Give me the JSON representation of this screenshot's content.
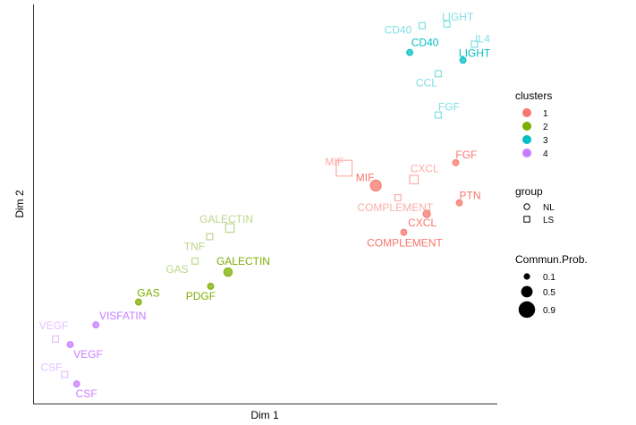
{
  "chart_data": {
    "type": "scatter",
    "title": "",
    "xlabel": "Dim 1",
    "ylabel": "Dim 2",
    "grid": false,
    "legend_position": "right",
    "xlim": [
      0,
      100
    ],
    "ylim": [
      0,
      100
    ],
    "cluster_colors": {
      "1": "#F8766D",
      "2": "#7CAE00",
      "3": "#00BFC4",
      "4": "#C77CFF"
    },
    "faded_colors": {
      "1": "#FBADA7",
      "2": "#BDD68A",
      "3": "#7FDFE2",
      "4": "#E5C0FF"
    },
    "points": [
      {
        "label": "CD40",
        "x": 84.2,
        "y": 95.3,
        "cluster": "3",
        "group": "LS",
        "prob": 0.1
      },
      {
        "label": "LIGHT",
        "x": 89.6,
        "y": 95.7,
        "cluster": "3",
        "group": "LS",
        "prob": 0.1
      },
      {
        "label": "IL4",
        "x": 95.6,
        "y": 90.6,
        "cluster": "3",
        "group": "LS",
        "prob": 0.1
      },
      {
        "label": "CD40",
        "x": 81.5,
        "y": 88.5,
        "cluster": "3",
        "group": "NL",
        "prob": 0.1
      },
      {
        "label": "LIGHT",
        "x": 93.1,
        "y": 86.5,
        "cluster": "3",
        "group": "NL",
        "prob": 0.1
      },
      {
        "label": "CCL",
        "x": 87.7,
        "y": 83.1,
        "cluster": "3",
        "group": "LS",
        "prob": 0.1
      },
      {
        "label": "FGF",
        "x": 87.7,
        "y": 72.6,
        "cluster": "3",
        "group": "LS",
        "prob": 0.1
      },
      {
        "label": "FGF",
        "x": 91.5,
        "y": 60.5,
        "cluster": "1",
        "group": "NL",
        "prob": 0.1
      },
      {
        "label": "MIF",
        "x": 67.2,
        "y": 59.1,
        "cluster": "1",
        "group": "LS",
        "prob": 0.9
      },
      {
        "label": "MIF",
        "x": 74.1,
        "y": 54.7,
        "cluster": "1",
        "group": "NL",
        "prob": 0.5
      },
      {
        "label": "CXCL",
        "x": 82.4,
        "y": 56.2,
        "cluster": "1",
        "group": "LS",
        "prob": 0.3
      },
      {
        "label": "PTN",
        "x": 92.3,
        "y": 50.3,
        "cluster": "1",
        "group": "NL",
        "prob": 0.1
      },
      {
        "label": "COMPLEMENT",
        "x": 78.9,
        "y": 51.6,
        "cluster": "1",
        "group": "LS",
        "prob": 0.1
      },
      {
        "label": "CXCL",
        "x": 85.2,
        "y": 47.5,
        "cluster": "1",
        "group": "NL",
        "prob": 0.2
      },
      {
        "label": "COMPLEMENT",
        "x": 80.2,
        "y": 42.8,
        "cluster": "1",
        "group": "NL",
        "prob": 0.1
      },
      {
        "label": "GALECTIN",
        "x": 42.3,
        "y": 43.9,
        "cluster": "2",
        "group": "LS",
        "prob": 0.3
      },
      {
        "label": "TNF",
        "x": 37.9,
        "y": 41.7,
        "cluster": "2",
        "group": "LS",
        "prob": 0.1
      },
      {
        "label": "GAS",
        "x": 34.7,
        "y": 35.5,
        "cluster": "2",
        "group": "LS",
        "prob": 0.1
      },
      {
        "label": "GALECTIN",
        "x": 41.9,
        "y": 32.7,
        "cluster": "2",
        "group": "NL",
        "prob": 0.3
      },
      {
        "label": "PDGF",
        "x": 38.1,
        "y": 29.1,
        "cluster": "2",
        "group": "NL",
        "prob": 0.1
      },
      {
        "label": "GAS",
        "x": 22.4,
        "y": 25.1,
        "cluster": "2",
        "group": "NL",
        "prob": 0.1
      },
      {
        "label": "VISFATIN",
        "x": 13.1,
        "y": 19.3,
        "cluster": "4",
        "group": "NL",
        "prob": 0.1
      },
      {
        "label": "VEGF",
        "x": 4.3,
        "y": 15.7,
        "cluster": "4",
        "group": "LS",
        "prob": 0.1
      },
      {
        "label": "VEGF",
        "x": 7.5,
        "y": 14.3,
        "cluster": "4",
        "group": "NL",
        "prob": 0.1
      },
      {
        "label": "CSF",
        "x": 6.3,
        "y": 6.7,
        "cluster": "4",
        "group": "LS",
        "prob": 0.1
      },
      {
        "label": "CSF",
        "x": 8.9,
        "y": 4.3,
        "cluster": "4",
        "group": "NL",
        "prob": 0.1
      }
    ],
    "legend": {
      "clusters": {
        "title": "clusters",
        "items": [
          "1",
          "2",
          "3",
          "4"
        ]
      },
      "group": {
        "title": "group",
        "items": [
          "NL",
          "LS"
        ]
      },
      "prob": {
        "title": "Commun.Prob.",
        "items": [
          0.1,
          0.5,
          0.9
        ]
      }
    }
  }
}
